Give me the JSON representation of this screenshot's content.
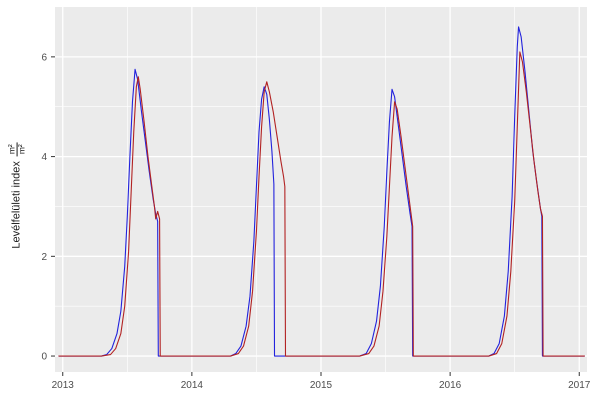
{
  "figure": {
    "background": "#ffffff",
    "panel_bg": "#ebebeb",
    "grid_major_color": "#ffffff",
    "grid_minor_color": "#ffffff",
    "tick_color": "#333333",
    "tick_label_color": "#4d4d4d"
  },
  "chart_data": {
    "type": "line",
    "title": "",
    "xlabel": "",
    "ylabel": "Levélfelületi index",
    "ylabel_fraction": {
      "numerator": "m²",
      "denominator": "m²"
    },
    "grid": true,
    "legend": "none",
    "xlim": [
      2012.94,
      2017.06
    ],
    "ylim": [
      -0.32,
      7.0
    ],
    "x_ticks": [
      2013,
      2014,
      2015,
      2016,
      2017
    ],
    "x_minor_ticks": [
      2013.5,
      2014.5,
      2015.5,
      2016.5
    ],
    "y_ticks": [
      0,
      2,
      4,
      6
    ],
    "y_minor_ticks": [
      1,
      3,
      5
    ],
    "series": [
      {
        "name": "series-blue",
        "color": "#2222dd",
        "points": [
          [
            2012.97,
            0
          ],
          [
            2013.1,
            0
          ],
          [
            2013.2,
            0
          ],
          [
            2013.3,
            0
          ],
          [
            2013.34,
            0.03
          ],
          [
            2013.38,
            0.15
          ],
          [
            2013.42,
            0.45
          ],
          [
            2013.45,
            0.9
          ],
          [
            2013.48,
            1.8
          ],
          [
            2013.5,
            2.8
          ],
          [
            2013.52,
            4.0
          ],
          [
            2013.54,
            5.1
          ],
          [
            2013.56,
            5.75
          ],
          [
            2013.58,
            5.55
          ],
          [
            2013.61,
            4.9
          ],
          [
            2013.64,
            4.3
          ],
          [
            2013.67,
            3.7
          ],
          [
            2013.7,
            3.15
          ],
          [
            2013.72,
            2.85
          ],
          [
            2013.735,
            2.7
          ],
          [
            2013.74,
            0
          ],
          [
            2013.8,
            0
          ],
          [
            2013.9,
            0
          ],
          [
            2014.0,
            0
          ],
          [
            2014.1,
            0
          ],
          [
            2014.2,
            0
          ],
          [
            2014.3,
            0
          ],
          [
            2014.34,
            0.05
          ],
          [
            2014.38,
            0.2
          ],
          [
            2014.42,
            0.6
          ],
          [
            2014.45,
            1.2
          ],
          [
            2014.48,
            2.3
          ],
          [
            2014.5,
            3.4
          ],
          [
            2014.52,
            4.5
          ],
          [
            2014.54,
            5.15
          ],
          [
            2014.56,
            5.4
          ],
          [
            2014.58,
            5.25
          ],
          [
            2014.6,
            4.75
          ],
          [
            2014.62,
            4.1
          ],
          [
            2014.635,
            3.45
          ],
          [
            2014.64,
            0
          ],
          [
            2014.7,
            0
          ],
          [
            2014.8,
            0
          ],
          [
            2014.9,
            0
          ],
          [
            2015.0,
            0
          ],
          [
            2015.1,
            0
          ],
          [
            2015.2,
            0
          ],
          [
            2015.3,
            0
          ],
          [
            2015.35,
            0.05
          ],
          [
            2015.39,
            0.25
          ],
          [
            2015.43,
            0.7
          ],
          [
            2015.46,
            1.4
          ],
          [
            2015.49,
            2.6
          ],
          [
            2015.51,
            3.7
          ],
          [
            2015.53,
            4.7
          ],
          [
            2015.55,
            5.35
          ],
          [
            2015.57,
            5.2
          ],
          [
            2015.6,
            4.6
          ],
          [
            2015.63,
            4.0
          ],
          [
            2015.66,
            3.4
          ],
          [
            2015.69,
            2.85
          ],
          [
            2015.705,
            2.6
          ],
          [
            2015.71,
            0
          ],
          [
            2015.8,
            0
          ],
          [
            2015.9,
            0
          ],
          [
            2016.0,
            0
          ],
          [
            2016.1,
            0
          ],
          [
            2016.2,
            0
          ],
          [
            2016.3,
            0
          ],
          [
            2016.34,
            0.05
          ],
          [
            2016.38,
            0.25
          ],
          [
            2016.42,
            0.8
          ],
          [
            2016.45,
            1.7
          ],
          [
            2016.48,
            3.2
          ],
          [
            2016.5,
            4.8
          ],
          [
            2016.52,
            6.2
          ],
          [
            2016.53,
            6.6
          ],
          [
            2016.55,
            6.4
          ],
          [
            2016.58,
            5.7
          ],
          [
            2016.61,
            4.9
          ],
          [
            2016.64,
            4.1
          ],
          [
            2016.67,
            3.5
          ],
          [
            2016.7,
            2.95
          ],
          [
            2016.71,
            2.8
          ],
          [
            2016.715,
            0
          ],
          [
            2016.8,
            0
          ],
          [
            2016.9,
            0
          ],
          [
            2017.0,
            0
          ],
          [
            2017.04,
            0
          ]
        ]
      },
      {
        "name": "series-red",
        "color": "#b22222",
        "points": [
          [
            2012.97,
            0
          ],
          [
            2013.1,
            0
          ],
          [
            2013.2,
            0
          ],
          [
            2013.3,
            0
          ],
          [
            2013.37,
            0.03
          ],
          [
            2013.41,
            0.15
          ],
          [
            2013.45,
            0.45
          ],
          [
            2013.48,
            1.0
          ],
          [
            2013.51,
            2.1
          ],
          [
            2013.53,
            3.3
          ],
          [
            2013.55,
            4.5
          ],
          [
            2013.57,
            5.4
          ],
          [
            2013.585,
            5.6
          ],
          [
            2013.6,
            5.35
          ],
          [
            2013.63,
            4.7
          ],
          [
            2013.66,
            4.0
          ],
          [
            2013.69,
            3.4
          ],
          [
            2013.71,
            3.0
          ],
          [
            2013.72,
            2.75
          ],
          [
            2013.735,
            2.9
          ],
          [
            2013.75,
            2.75
          ],
          [
            2013.755,
            0
          ],
          [
            2013.8,
            0
          ],
          [
            2013.9,
            0
          ],
          [
            2014.0,
            0
          ],
          [
            2014.1,
            0
          ],
          [
            2014.2,
            0
          ],
          [
            2014.3,
            0
          ],
          [
            2014.36,
            0.05
          ],
          [
            2014.4,
            0.2
          ],
          [
            2014.44,
            0.6
          ],
          [
            2014.47,
            1.3
          ],
          [
            2014.5,
            2.5
          ],
          [
            2014.52,
            3.6
          ],
          [
            2014.54,
            4.6
          ],
          [
            2014.56,
            5.3
          ],
          [
            2014.58,
            5.5
          ],
          [
            2014.6,
            5.3
          ],
          [
            2014.63,
            4.9
          ],
          [
            2014.66,
            4.4
          ],
          [
            2014.69,
            3.9
          ],
          [
            2014.71,
            3.6
          ],
          [
            2014.72,
            3.4
          ],
          [
            2014.725,
            0
          ],
          [
            2014.8,
            0
          ],
          [
            2014.9,
            0
          ],
          [
            2015.0,
            0
          ],
          [
            2015.1,
            0
          ],
          [
            2015.2,
            0
          ],
          [
            2015.3,
            0
          ],
          [
            2015.37,
            0.05
          ],
          [
            2015.41,
            0.2
          ],
          [
            2015.45,
            0.6
          ],
          [
            2015.48,
            1.3
          ],
          [
            2015.51,
            2.4
          ],
          [
            2015.53,
            3.4
          ],
          [
            2015.55,
            4.4
          ],
          [
            2015.57,
            5.1
          ],
          [
            2015.59,
            4.95
          ],
          [
            2015.62,
            4.4
          ],
          [
            2015.65,
            3.8
          ],
          [
            2015.68,
            3.2
          ],
          [
            2015.7,
            2.8
          ],
          [
            2015.71,
            2.6
          ],
          [
            2015.715,
            0
          ],
          [
            2015.8,
            0
          ],
          [
            2015.9,
            0
          ],
          [
            2016.0,
            0
          ],
          [
            2016.1,
            0
          ],
          [
            2016.2,
            0
          ],
          [
            2016.3,
            0
          ],
          [
            2016.36,
            0.05
          ],
          [
            2016.4,
            0.25
          ],
          [
            2016.44,
            0.8
          ],
          [
            2016.47,
            1.7
          ],
          [
            2016.5,
            3.1
          ],
          [
            2016.52,
            4.6
          ],
          [
            2016.54,
            6.1
          ],
          [
            2016.56,
            5.9
          ],
          [
            2016.59,
            5.3
          ],
          [
            2016.62,
            4.6
          ],
          [
            2016.65,
            3.9
          ],
          [
            2016.68,
            3.3
          ],
          [
            2016.7,
            2.95
          ],
          [
            2016.715,
            2.8
          ],
          [
            2016.72,
            0
          ],
          [
            2016.8,
            0
          ],
          [
            2016.9,
            0
          ],
          [
            2017.0,
            0
          ],
          [
            2017.04,
            0
          ]
        ]
      }
    ]
  }
}
